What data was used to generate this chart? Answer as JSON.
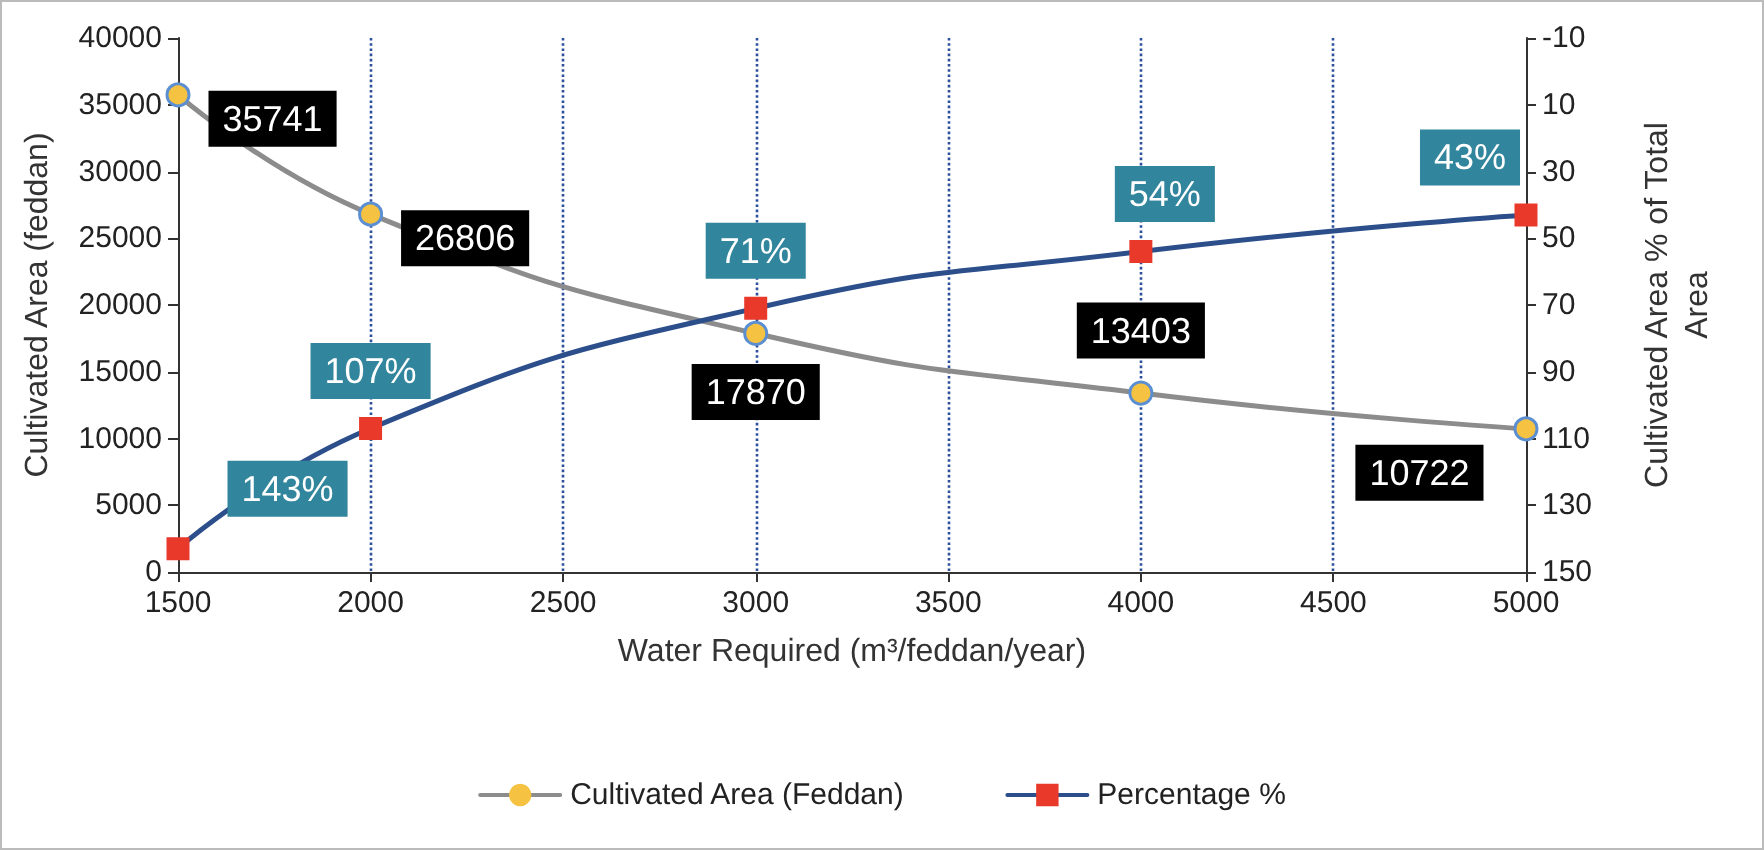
{
  "chart_data": {
    "type": "line",
    "xlabel": "Water Required (m³/feddan/year)",
    "ylabel": "Cultivated Area (feddan)",
    "y2label": "Cultivated Area % of Total Area",
    "x": [
      1500,
      2000,
      3000,
      4000,
      5000
    ],
    "xlim": [
      1500,
      5000
    ],
    "xticks": [
      1500,
      2000,
      2500,
      3000,
      3500,
      4000,
      4500,
      5000
    ],
    "ylim": [
      0,
      40000
    ],
    "yticks": [
      0,
      5000,
      10000,
      15000,
      20000,
      25000,
      30000,
      35000,
      40000
    ],
    "y2lim": [
      150,
      -10
    ],
    "y2ticks": [
      -10,
      10,
      30,
      50,
      70,
      90,
      110,
      130,
      150
    ],
    "grid": "x",
    "legend": "bottom",
    "series": [
      {
        "name": "Cultivated Area (Feddan)",
        "color": "#8c8c8c",
        "colors": [
          "#f5c242",
          "#f5c242",
          "#f5c242",
          "#f5c242",
          "#f5c242"
        ],
        "marker": "circle",
        "data_labels": true,
        "values": [
          35741,
          26806,
          17870,
          13403,
          10722
        ]
      },
      {
        "name": "Percentage %",
        "color": "#2c4f8c",
        "colors": [
          "#e8392b",
          "#e8392b",
          "#e8392b",
          "#e8392b",
          "#e8392b"
        ],
        "marker": "square",
        "axis": "y2",
        "values": [
          143,
          107,
          71,
          54,
          43
        ],
        "value_labels": [
          "143%",
          "107%",
          "71%",
          "54%",
          "43%"
        ]
      }
    ]
  }
}
